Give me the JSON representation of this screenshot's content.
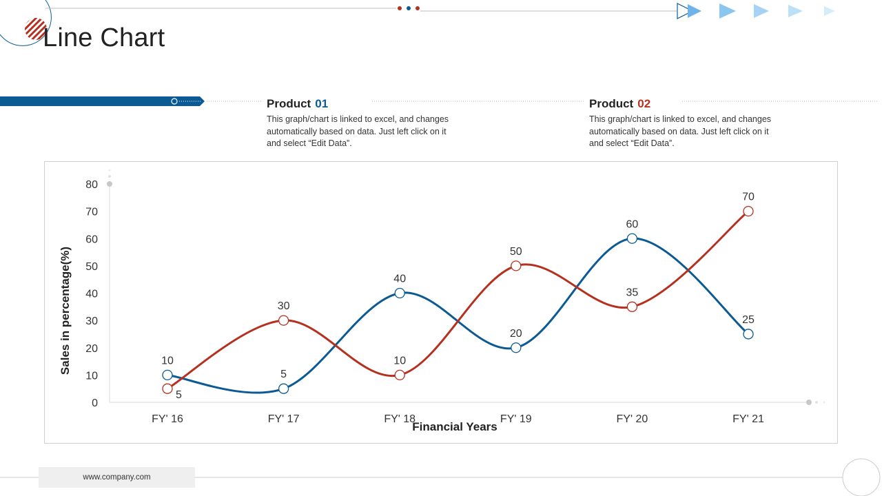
{
  "page": {
    "title": "Line Chart",
    "footer_url": "www.company.com"
  },
  "legend": [
    {
      "label": "Product",
      "number": "01",
      "color": "#0b5a94",
      "description_lines": [
        "This graph/chart is linked to excel, and changes",
        "automatically based on data. Just left click on it",
        "and select “Edit Data”."
      ]
    },
    {
      "label": "Product",
      "number": "02",
      "color": "#b5301f",
      "description_lines": [
        "This graph/chart is linked to excel, and changes",
        "automatically based on data. Just left click on it",
        "and select “Edit Data”."
      ]
    }
  ],
  "chart_data": {
    "type": "line",
    "title": "Line Chart",
    "xlabel": "Financial Years",
    "ylabel": "Sales in percentage(%)",
    "categories": [
      "FY' 16",
      "FY' 17",
      "FY' 18",
      "FY' 19",
      "FY' 20",
      "FY' 21"
    ],
    "ylim": [
      0,
      80
    ],
    "yticks": [
      0,
      10,
      20,
      30,
      40,
      50,
      60,
      70,
      80
    ],
    "grid": false,
    "smooth": true,
    "series": [
      {
        "name": "Product 01",
        "color": "#0b5a94",
        "values": [
          10,
          5,
          40,
          20,
          60,
          25
        ]
      },
      {
        "name": "Product 02",
        "color": "#b5301f",
        "values": [
          5,
          30,
          10,
          50,
          35,
          70
        ]
      }
    ]
  }
}
